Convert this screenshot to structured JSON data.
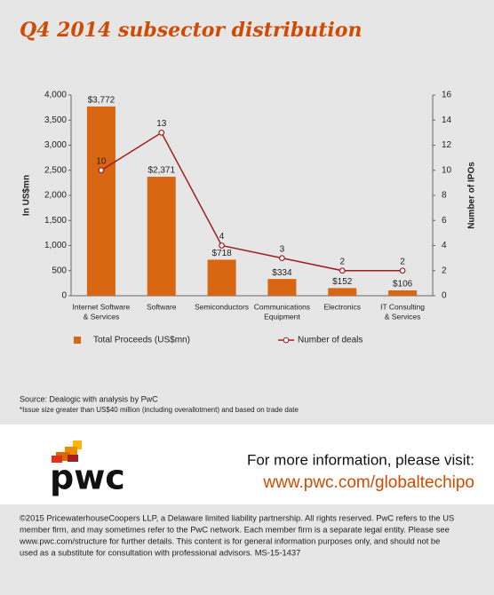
{
  "chart_data": {
    "type": "bar",
    "title": "Q4 2014 subsector distribution",
    "categories": [
      [
        "Internet Software",
        "& Services"
      ],
      [
        "Software"
      ],
      [
        "Semiconductors"
      ],
      [
        "Communications",
        "Equipment"
      ],
      [
        "Electronics"
      ],
      [
        "IT Consulting",
        "& Services"
      ]
    ],
    "series": [
      {
        "name": "Total Proceeds (US$mn)",
        "color": "#d86613",
        "values": [
          3772,
          2371,
          718,
          334,
          152,
          106
        ],
        "value_labels": [
          "$3,772",
          "$2,371",
          "$718",
          "$334",
          "$152",
          "$106"
        ]
      },
      {
        "name": "Number of deals",
        "type": "line",
        "axis": "y2",
        "color": "#9e1f1f",
        "values": [
          10,
          13,
          4,
          3,
          2,
          2
        ]
      }
    ],
    "ylabel": "In US$mn",
    "y2label": "Number of IPOs",
    "ylim": [
      0,
      4000
    ],
    "yticks": [
      0,
      500,
      {
        "value": 1000,
        "label": "1,000"
      },
      {
        "value": 1500,
        "label": "1,500"
      },
      {
        "value": 2000,
        "label": "2,000"
      },
      {
        "value": 2500,
        "label": "2,500"
      },
      {
        "value": 3000,
        "label": "3,000"
      },
      {
        "value": 3500,
        "label": "3,500"
      },
      {
        "value": 4000,
        "label": "4,000"
      }
    ],
    "y2lim": [
      0,
      16
    ],
    "y2ticks": [
      0,
      2,
      4,
      6,
      8,
      10,
      12,
      14,
      16
    ],
    "legend": "bottom"
  },
  "source": [
    "Source: Dealogic with analysis by PwC",
    "*Issue size greater than US$40 million (including overallotment) and based on trade date"
  ],
  "promo": {
    "logo": "pwc",
    "text": "For more information, please visit:",
    "url": "www.pwc.com/globaltechipo"
  },
  "footer": [
    "©2015 PricewaterhouseCoopers LLP, a Delaware limited liability partnership. All rights reserved. PwC refers to the US",
    "member firm, and may sometimes refer to the PwC network. Each member firm is a separate legal entity. Please see",
    "www.pwc.com/structure for further details. This content is for general information purposes only, and should not be",
    "used as a substitute for consultation with professional advisors. MS-15-1437"
  ]
}
